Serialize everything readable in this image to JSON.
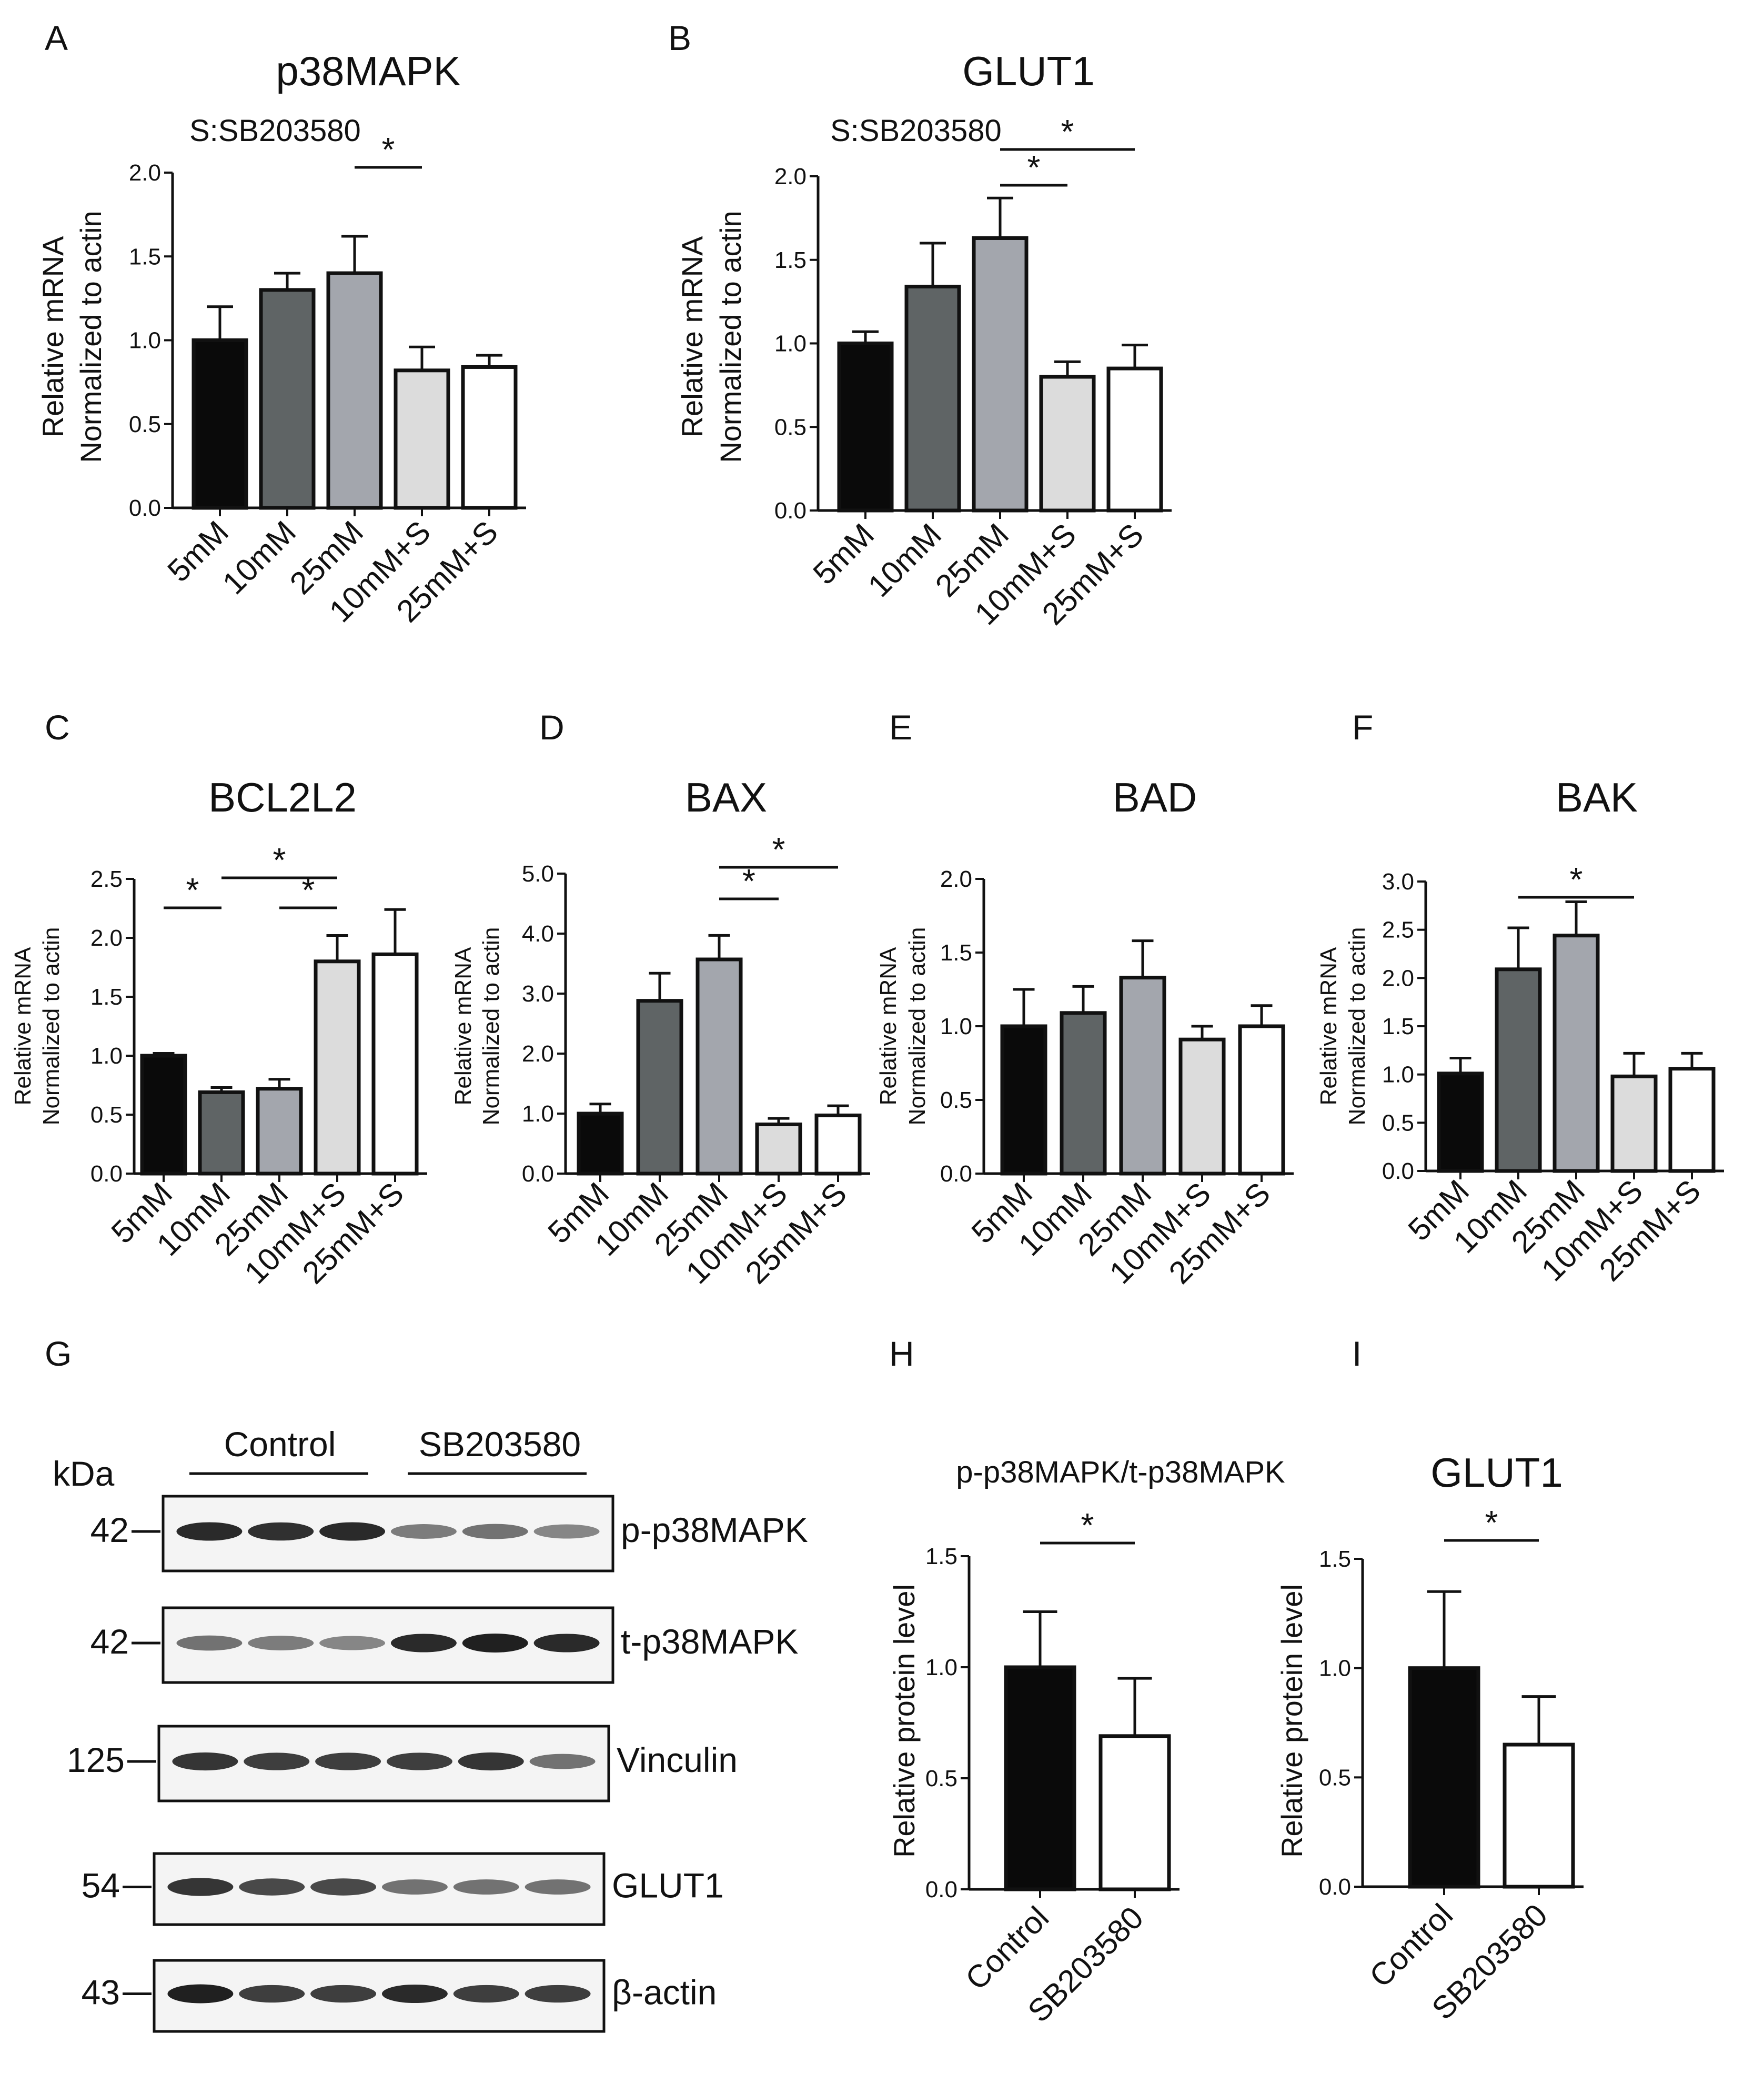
{
  "panels": [
    {
      "id": "A",
      "title": "p38MAPK",
      "note": "S:SB203580"
    },
    {
      "id": "B",
      "title": "GLUT1",
      "note": "S:SB203580"
    },
    {
      "id": "C",
      "title": "BCL2L2"
    },
    {
      "id": "D",
      "title": "BAX"
    },
    {
      "id": "E",
      "title": "BAD"
    },
    {
      "id": "F",
      "title": "BAK"
    },
    {
      "id": "G"
    },
    {
      "id": "H",
      "title": "p-p38MAPK/t-p38MAPK"
    },
    {
      "id": "I",
      "title": "GLUT1"
    }
  ],
  "colors": {
    "black": "#0a0a0a",
    "dark_gray": "#5f6465",
    "mid_gray": "#a3a6ad",
    "light_gray": "#dcdcdc",
    "white": "#ffffff"
  },
  "chart_data": [
    {
      "panel": "A",
      "type": "bar",
      "title": "p38MAPK",
      "ylabel": [
        "Relative mRNA",
        "Normalized to actin"
      ],
      "categories": [
        "5mM",
        "10mM",
        "25mM",
        "10mM+S",
        "25mM+S"
      ],
      "values": [
        1.0,
        1.3,
        1.4,
        0.82,
        0.84
      ],
      "errors": [
        0.2,
        0.1,
        0.22,
        0.14,
        0.07
      ],
      "ylim": [
        0,
        2.0
      ],
      "yticks": [
        "0.0",
        "0.5",
        "1.0",
        "1.5",
        "2.0"
      ],
      "significance": [
        {
          "from": 2,
          "to": 3,
          "label": "*"
        }
      ]
    },
    {
      "panel": "B",
      "type": "bar",
      "title": "GLUT1",
      "ylabel": [
        "Relative mRNA",
        "Normalized to actin"
      ],
      "categories": [
        "5mM",
        "10mM",
        "25mM",
        "10mM+S",
        "25mM+S"
      ],
      "values": [
        1.0,
        1.34,
        1.63,
        0.8,
        0.85
      ],
      "errors": [
        0.07,
        0.26,
        0.24,
        0.09,
        0.14
      ],
      "ylim": [
        0,
        2.0
      ],
      "yticks": [
        "0.0",
        "0.5",
        "1.0",
        "1.5",
        "2.0"
      ],
      "significance": [
        {
          "from": 2,
          "to": 3,
          "label": "*"
        },
        {
          "from": 2,
          "to": 4,
          "label": "*"
        }
      ]
    },
    {
      "panel": "C",
      "type": "bar",
      "title": "BCL2L2",
      "ylabel": [
        "Relative mRNA",
        "Normalized to actin"
      ],
      "categories": [
        "5mM",
        "10mM",
        "25mM",
        "10mM+S",
        "25mM+S"
      ],
      "values": [
        1.0,
        0.69,
        0.72,
        1.8,
        1.86
      ],
      "errors": [
        0.02,
        0.04,
        0.08,
        0.22,
        0.38
      ],
      "ylim": [
        0,
        2.5
      ],
      "yticks": [
        "0.0",
        "0.5",
        "1.0",
        "1.5",
        "2.0",
        "2.5"
      ],
      "significance": [
        {
          "from": 0,
          "to": 1,
          "label": "*"
        },
        {
          "from": 2,
          "to": 3,
          "label": "*"
        },
        {
          "from": 1,
          "to": 3,
          "label": "*"
        }
      ]
    },
    {
      "panel": "D",
      "type": "bar",
      "title": "BAX",
      "ylabel": [
        "Relative mRNA",
        "Normalized to actin"
      ],
      "categories": [
        "5mM",
        "10mM",
        "25mM",
        "10mM+S",
        "25mM+S"
      ],
      "values": [
        1.0,
        2.88,
        3.57,
        0.82,
        0.97
      ],
      "errors": [
        0.16,
        0.46,
        0.4,
        0.1,
        0.16
      ],
      "ylim": [
        0,
        5.0
      ],
      "yticks": [
        "0.0",
        "1.0",
        "2.0",
        "3.0",
        "4.0",
        "5.0"
      ],
      "significance": [
        {
          "from": 2,
          "to": 3,
          "label": "*"
        },
        {
          "from": 2,
          "to": 4,
          "label": "*"
        }
      ]
    },
    {
      "panel": "E",
      "type": "bar",
      "title": "BAD",
      "ylabel": [
        "Relative mRNA",
        "Normalized to actin"
      ],
      "categories": [
        "5mM",
        "10mM",
        "25mM",
        "10mM+S",
        "25mM+S"
      ],
      "values": [
        1.0,
        1.09,
        1.33,
        0.91,
        1.0
      ],
      "errors": [
        0.25,
        0.18,
        0.25,
        0.09,
        0.14
      ],
      "ylim": [
        0,
        2.0
      ],
      "yticks": [
        "0.0",
        "0.5",
        "1.0",
        "1.5",
        "2.0"
      ],
      "significance": []
    },
    {
      "panel": "F",
      "type": "bar",
      "title": "BAK",
      "ylabel": [
        "Relative mRNA",
        "Normalized to actin"
      ],
      "categories": [
        "5mM",
        "10mM",
        "25mM",
        "10mM+S",
        "25mM+S"
      ],
      "values": [
        1.01,
        2.09,
        2.44,
        0.98,
        1.06
      ],
      "errors": [
        0.16,
        0.43,
        0.35,
        0.24,
        0.16
      ],
      "ylim": [
        0,
        3.0
      ],
      "yticks": [
        "0.0",
        "0.5",
        "1.0",
        "1.5",
        "2.0",
        "2.5",
        "3.0"
      ],
      "significance": [
        {
          "from": 1,
          "to": 3,
          "label": "*"
        }
      ]
    },
    {
      "panel": "H",
      "type": "bar",
      "title": "p-p38MAPK/t-p38MAPK",
      "ylabel": [
        "Relative protein level"
      ],
      "categories": [
        "Control",
        "SB203580"
      ],
      "values": [
        1.0,
        0.69
      ],
      "errors": [
        0.25,
        0.26
      ],
      "ylim": [
        0,
        1.5
      ],
      "yticks": [
        "0.0",
        "0.5",
        "1.0",
        "1.5"
      ],
      "significance": [
        {
          "from": 0,
          "to": 1,
          "label": "*"
        }
      ]
    },
    {
      "panel": "I",
      "type": "bar",
      "title": "GLUT1",
      "ylabel": [
        "Relative protein level"
      ],
      "categories": [
        "Control",
        "SB203580"
      ],
      "values": [
        1.0,
        0.65
      ],
      "errors": [
        0.35,
        0.22
      ],
      "ylim": [
        0,
        1.5
      ],
      "yticks": [
        "0.0",
        "0.5",
        "1.0",
        "1.5"
      ],
      "significance": [
        {
          "from": 0,
          "to": 1,
          "label": "*"
        }
      ]
    }
  ],
  "western_blot": {
    "kda_label": "kDa",
    "groups": [
      "Control",
      "SB203580"
    ],
    "rows": [
      {
        "kda": "42",
        "label": "p-p38MAPK",
        "intensity": [
          0.95,
          0.92,
          0.95,
          0.55,
          0.6,
          0.5
        ]
      },
      {
        "kda": "42",
        "label": "t-p38MAPK",
        "intensity": [
          0.6,
          0.55,
          0.5,
          0.95,
          1.0,
          0.95
        ]
      },
      {
        "kda": "125",
        "label": "Vinculin",
        "intensity": [
          0.9,
          0.85,
          0.85,
          0.85,
          0.9,
          0.6
        ]
      },
      {
        "kda": "54",
        "label": "GLUT1",
        "intensity": [
          0.9,
          0.8,
          0.8,
          0.6,
          0.6,
          0.6
        ]
      },
      {
        "kda": "43",
        "label": "β-actin",
        "intensity": [
          1.0,
          0.85,
          0.85,
          0.95,
          0.85,
          0.85
        ]
      }
    ]
  }
}
